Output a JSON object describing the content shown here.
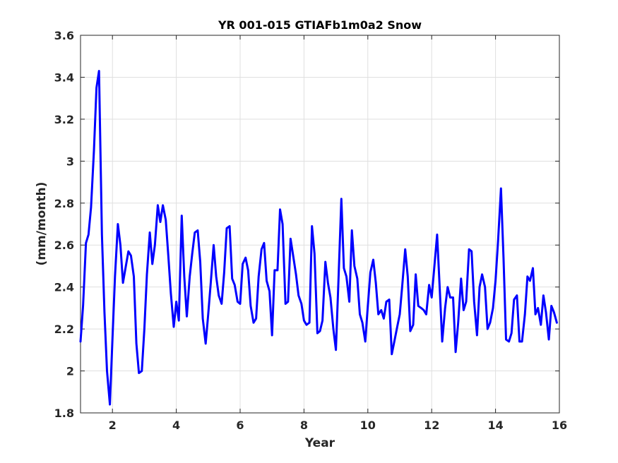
{
  "chart_data": {
    "type": "line",
    "title": "YR 001-015 GTIAFb1m0a2 Snow",
    "xlabel": "Year",
    "ylabel": "(mm/month)",
    "xlim": [
      1,
      16
    ],
    "ylim": [
      1.8,
      3.6
    ],
    "xticks": [
      2,
      4,
      6,
      8,
      10,
      12,
      14,
      16
    ],
    "xtick_labels": [
      "2",
      "4",
      "6",
      "8",
      "10",
      "12",
      "14",
      "16"
    ],
    "yticks": [
      1.8,
      2,
      2.2,
      2.4,
      2.6,
      2.8,
      3,
      3.2,
      3.4,
      3.6
    ],
    "ytick_labels": [
      "1.8",
      "2",
      "2.2",
      "2.4",
      "2.6",
      "2.8",
      "3",
      "3.2",
      "3.4",
      "3.6"
    ],
    "grid": true,
    "series": [
      {
        "color": "#0000ff",
        "x": [
          1.0,
          1.08,
          1.17,
          1.25,
          1.33,
          1.42,
          1.5,
          1.58,
          1.67,
          1.75,
          1.83,
          1.92,
          2.0,
          2.08,
          2.17,
          2.25,
          2.33,
          2.42,
          2.5,
          2.58,
          2.67,
          2.75,
          2.83,
          2.92,
          3.0,
          3.08,
          3.17,
          3.25,
          3.33,
          3.42,
          3.5,
          3.58,
          3.67,
          3.75,
          3.83,
          3.92,
          4.0,
          4.08,
          4.17,
          4.25,
          4.33,
          4.42,
          4.5,
          4.58,
          4.67,
          4.75,
          4.83,
          4.92,
          5.0,
          5.08,
          5.17,
          5.25,
          5.33,
          5.42,
          5.5,
          5.58,
          5.67,
          5.75,
          5.83,
          5.92,
          6.0,
          6.08,
          6.17,
          6.25,
          6.33,
          6.42,
          6.5,
          6.58,
          6.67,
          6.75,
          6.83,
          6.92,
          7.0,
          7.08,
          7.17,
          7.25,
          7.33,
          7.42,
          7.5,
          7.58,
          7.67,
          7.75,
          7.83,
          7.92,
          8.0,
          8.08,
          8.17,
          8.25,
          8.33,
          8.42,
          8.5,
          8.58,
          8.67,
          8.75,
          8.83,
          8.92,
          9.0,
          9.08,
          9.17,
          9.25,
          9.33,
          9.42,
          9.5,
          9.58,
          9.67,
          9.75,
          9.83,
          9.92,
          10.0,
          10.08,
          10.17,
          10.25,
          10.33,
          10.42,
          10.5,
          10.58,
          10.67,
          10.75,
          10.83,
          10.92,
          11.0,
          11.08,
          11.17,
          11.25,
          11.33,
          11.42,
          11.5,
          11.58,
          11.67,
          11.75,
          11.83,
          11.92,
          12.0,
          12.08,
          12.17,
          12.25,
          12.33,
          12.42,
          12.5,
          12.58,
          12.67,
          12.75,
          12.83,
          12.92,
          13.0,
          13.08,
          13.17,
          13.25,
          13.33,
          13.42,
          13.5,
          13.58,
          13.67,
          13.75,
          13.83,
          13.92,
          14.0,
          14.08,
          14.17,
          14.25,
          14.33,
          14.42,
          14.5,
          14.58,
          14.67,
          14.75,
          14.83,
          14.92,
          15.0,
          15.08,
          15.17,
          15.25,
          15.33,
          15.42,
          15.5,
          15.58,
          15.67,
          15.75,
          15.83,
          15.92
        ],
        "values": [
          2.14,
          2.31,
          2.61,
          2.65,
          2.78,
          3.05,
          3.35,
          3.43,
          2.65,
          2.28,
          2.0,
          1.84,
          2.15,
          2.45,
          2.7,
          2.6,
          2.42,
          2.5,
          2.57,
          2.55,
          2.45,
          2.13,
          1.99,
          2.0,
          2.2,
          2.46,
          2.66,
          2.51,
          2.6,
          2.79,
          2.71,
          2.79,
          2.72,
          2.55,
          2.37,
          2.21,
          2.33,
          2.24,
          2.74,
          2.45,
          2.26,
          2.45,
          2.56,
          2.66,
          2.67,
          2.52,
          2.25,
          2.13,
          2.27,
          2.42,
          2.6,
          2.45,
          2.36,
          2.32,
          2.47,
          2.68,
          2.69,
          2.44,
          2.41,
          2.33,
          2.32,
          2.51,
          2.54,
          2.48,
          2.31,
          2.23,
          2.25,
          2.45,
          2.58,
          2.61,
          2.43,
          2.38,
          2.17,
          2.48,
          2.48,
          2.77,
          2.7,
          2.32,
          2.33,
          2.63,
          2.54,
          2.46,
          2.36,
          2.32,
          2.24,
          2.22,
          2.23,
          2.69,
          2.56,
          2.18,
          2.19,
          2.24,
          2.52,
          2.42,
          2.35,
          2.2,
          2.1,
          2.43,
          2.82,
          2.49,
          2.45,
          2.33,
          2.67,
          2.5,
          2.44,
          2.27,
          2.23,
          2.14,
          2.31,
          2.47,
          2.53,
          2.42,
          2.27,
          2.29,
          2.25,
          2.33,
          2.34,
          2.08,
          2.14,
          2.21,
          2.27,
          2.41,
          2.58,
          2.45,
          2.19,
          2.22,
          2.46,
          2.31,
          2.3,
          2.29,
          2.27,
          2.41,
          2.35,
          2.49,
          2.65,
          2.4,
          2.14,
          2.3,
          2.4,
          2.35,
          2.35,
          2.09,
          2.23,
          2.44,
          2.29,
          2.33,
          2.58,
          2.57,
          2.33,
          2.17,
          2.4,
          2.46,
          2.4,
          2.2,
          2.23,
          2.3,
          2.43,
          2.62,
          2.87,
          2.54,
          2.15,
          2.14,
          2.18,
          2.34,
          2.36,
          2.14,
          2.14,
          2.27,
          2.45,
          2.43,
          2.49,
          2.27,
          2.3,
          2.22,
          2.36,
          2.28,
          2.15,
          2.31,
          2.28,
          2.23
        ]
      }
    ]
  }
}
